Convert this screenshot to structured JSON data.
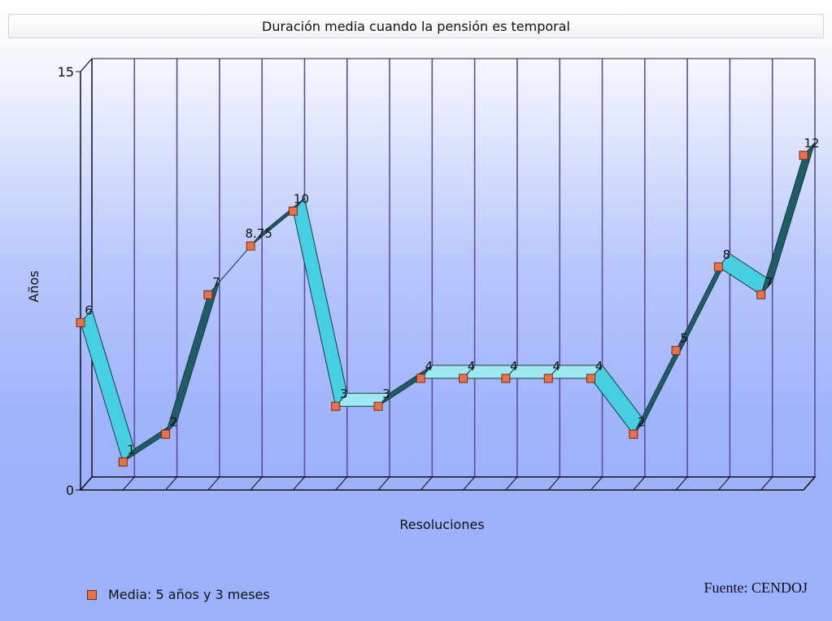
{
  "chart_data": {
    "type": "line",
    "title": "Duración media cuando la pensión es temporal",
    "xlabel": "Resoluciones",
    "ylabel": "Años",
    "ylim": [
      0,
      15
    ],
    "yticks": [
      "0",
      "15"
    ],
    "series": [
      {
        "name": "Media: 5 años y 3 meses",
        "values": [
          6,
          1,
          2,
          7,
          8.75,
          10,
          3,
          3,
          4,
          4,
          4,
          4,
          4,
          2,
          5,
          8,
          7,
          12
        ],
        "labels": [
          "6",
          "1",
          "2",
          "7",
          "8.75",
          "10",
          "3",
          "3",
          "4",
          "4",
          "4",
          "4",
          "4",
          "2",
          "5",
          "8",
          "7",
          "12"
        ]
      }
    ],
    "grid": true,
    "legend_position": "bottom-left",
    "colors": {
      "ribbon_front": "#46cfe3",
      "ribbon_top": "#9ee8f2",
      "ribbon_dark": "#1e5c66",
      "marker": "#e8704a",
      "gridline": "#5d4e96"
    }
  },
  "source": "Fuente: CENDOJ"
}
